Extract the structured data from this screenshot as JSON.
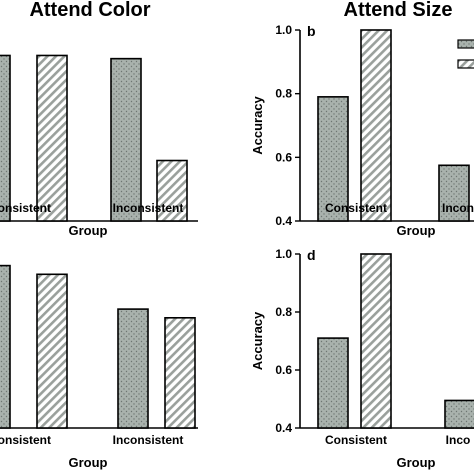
{
  "chart_data": [
    {
      "type": "bar",
      "panel": "a",
      "title": "Attend Color",
      "categories": [
        "Consistent",
        "Inconsistent"
      ],
      "series": [
        {
          "pattern": "dotted",
          "values": [
            0.92,
            0.91
          ]
        },
        {
          "pattern": "striped",
          "values": [
            0.92,
            0.59
          ]
        }
      ],
      "xlabel": "Group",
      "ylabel": "",
      "ylim": [
        0.4,
        1.0
      ],
      "yticks": []
    },
    {
      "type": "bar",
      "panel": "b",
      "title": "Attend Size",
      "panel_label": "b",
      "categories": [
        "Consistent",
        "Inconsistent"
      ],
      "tick_labels": [
        "Consistent",
        "Incon"
      ],
      "series": [
        {
          "pattern": "dotted",
          "values": [
            0.79,
            0.575
          ]
        },
        {
          "pattern": "striped",
          "values": [
            1.0,
            null
          ]
        }
      ],
      "xlabel": "Group",
      "ylabel": "Accuracy",
      "ylim": [
        0.4,
        1.0
      ],
      "yticks": [
        "0.4",
        "0.6",
        "0.8",
        "1.0"
      ]
    },
    {
      "type": "bar",
      "panel": "c",
      "title": "",
      "categories": [
        "Consistent",
        "Inconsistent"
      ],
      "series": [
        {
          "pattern": "dotted",
          "values": [
            0.96,
            0.81
          ]
        },
        {
          "pattern": "striped",
          "values": [
            0.93,
            0.78
          ]
        }
      ],
      "xlabel": "Group",
      "ylabel": "",
      "ylim": [
        0.4,
        1.0
      ],
      "yticks": []
    },
    {
      "type": "bar",
      "panel": "d",
      "title": "",
      "panel_label": "d",
      "categories": [
        "Consistent",
        "Inconsistent"
      ],
      "tick_labels": [
        "Consistent",
        "Inco"
      ],
      "series": [
        {
          "pattern": "dotted",
          "values": [
            0.71,
            0.495
          ]
        },
        {
          "pattern": "striped",
          "values": [
            1.0,
            null
          ]
        }
      ],
      "xlabel": "Group",
      "ylabel": "Accuracy",
      "ylim": [
        0.4,
        1.0
      ],
      "yticks": [
        "0.4",
        "0.6",
        "0.8",
        "1.0"
      ]
    }
  ],
  "colors": {
    "dotted_fill": "#a9b2ad",
    "dotted_dots": "#6e7672",
    "striped_fill": "#ffffff",
    "striped_lines": "#9aa09c",
    "axis": "#000000"
  }
}
